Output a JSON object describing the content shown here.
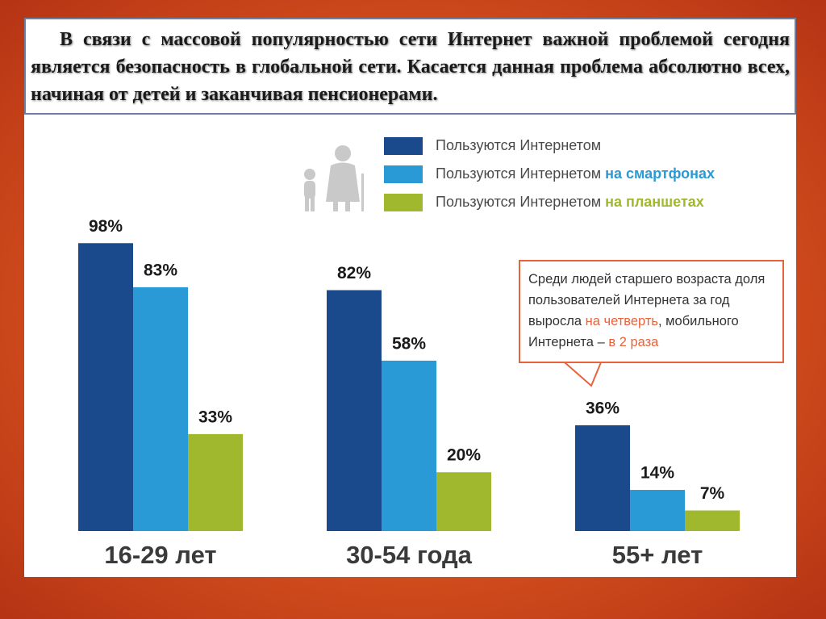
{
  "header": {
    "text": "В связи с массовой популярностью сети Интернет важной проблемой сегодня является безопасность в глобальной сети. Касается данная проблема абсолютно всех, начиная от детей и заканчивая пенсионерами."
  },
  "chart_data": {
    "type": "bar",
    "categories": [
      "16-29 лет",
      "30-54 года",
      "55+ лет"
    ],
    "series": [
      {
        "name": "Пользуются Интернетом",
        "color": "#1b4a8c",
        "values": [
          98,
          82,
          36
        ],
        "value_labels": [
          "98%",
          "82%",
          "36%"
        ]
      },
      {
        "name": "Пользуются Интернетом на смартфонах",
        "color": "#2a9ad6",
        "values": [
          83,
          58,
          14
        ],
        "value_labels": [
          "83%",
          "58%",
          "14%"
        ]
      },
      {
        "name": "Пользуются Интернетом на планшетах",
        "color": "#9fb82d",
        "values": [
          33,
          20,
          7
        ],
        "value_labels": [
          "33%",
          "20%",
          "7%"
        ]
      }
    ],
    "ylim": [
      0,
      100
    ],
    "annotation": [
      "Среди людей старшего возраста доля пользователей Интернета за год выросла ",
      "на четверть",
      ", мобильного Интернета – ",
      "в 2 раза"
    ]
  }
}
